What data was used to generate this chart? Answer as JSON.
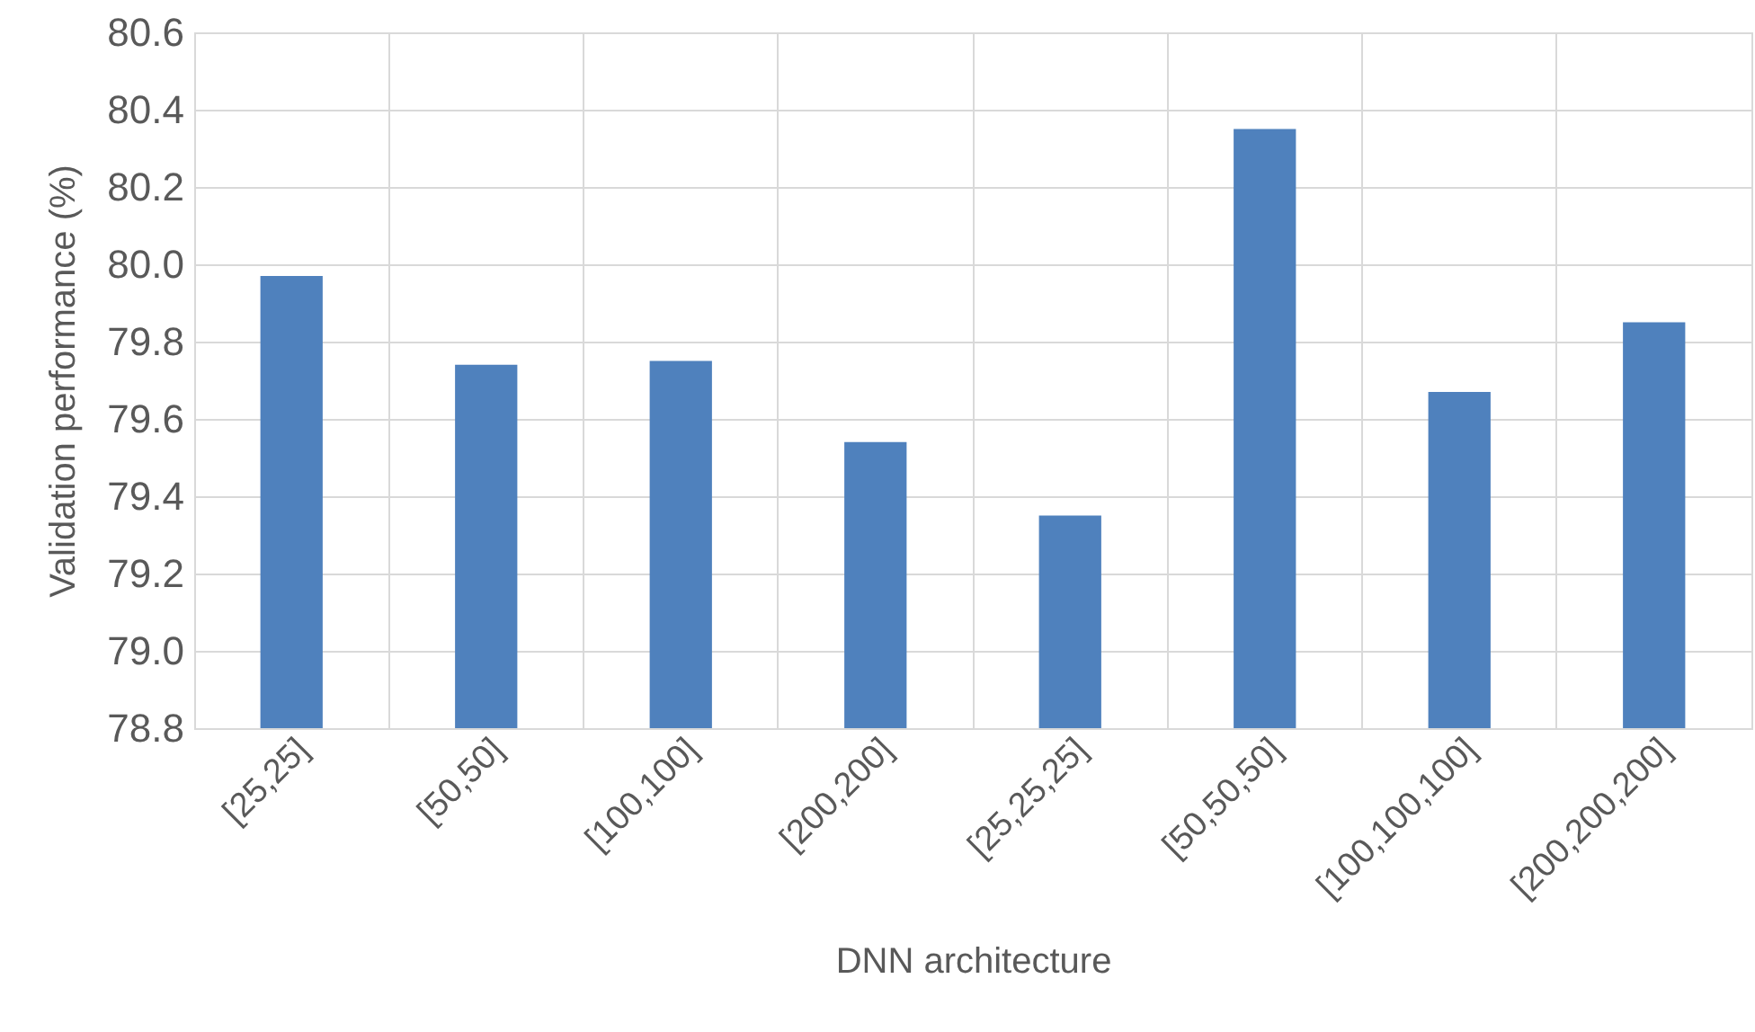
{
  "chart_data": {
    "type": "bar",
    "xlabel": "DNN architecture",
    "ylabel": "Validation performance (%)",
    "categories": [
      "[25,25]",
      "[50,50]",
      "[100,100]",
      "[200,200]",
      "[25,25,25]",
      "[50,50,50]",
      "[100,100,100]",
      "[200,200,200]"
    ],
    "values": [
      79.97,
      79.74,
      79.75,
      79.54,
      79.35,
      80.35,
      79.67,
      79.85
    ],
    "color": "#4f81bd",
    "ylim": [
      78.8,
      80.6
    ],
    "yticks": [
      {
        "value": 78.8,
        "label": "78.8"
      },
      {
        "value": 79.0,
        "label": "79.0"
      },
      {
        "value": 79.2,
        "label": "79.2"
      },
      {
        "value": 79.4,
        "label": "79.4"
      },
      {
        "value": 79.6,
        "label": "79.6"
      },
      {
        "value": 79.8,
        "label": "79.8"
      },
      {
        "value": 80.0,
        "label": "80.0"
      },
      {
        "value": 80.2,
        "label": "80.2"
      },
      {
        "value": 80.4,
        "label": "80.4"
      },
      {
        "value": 80.6,
        "label": "80.6"
      }
    ],
    "grid": true
  }
}
